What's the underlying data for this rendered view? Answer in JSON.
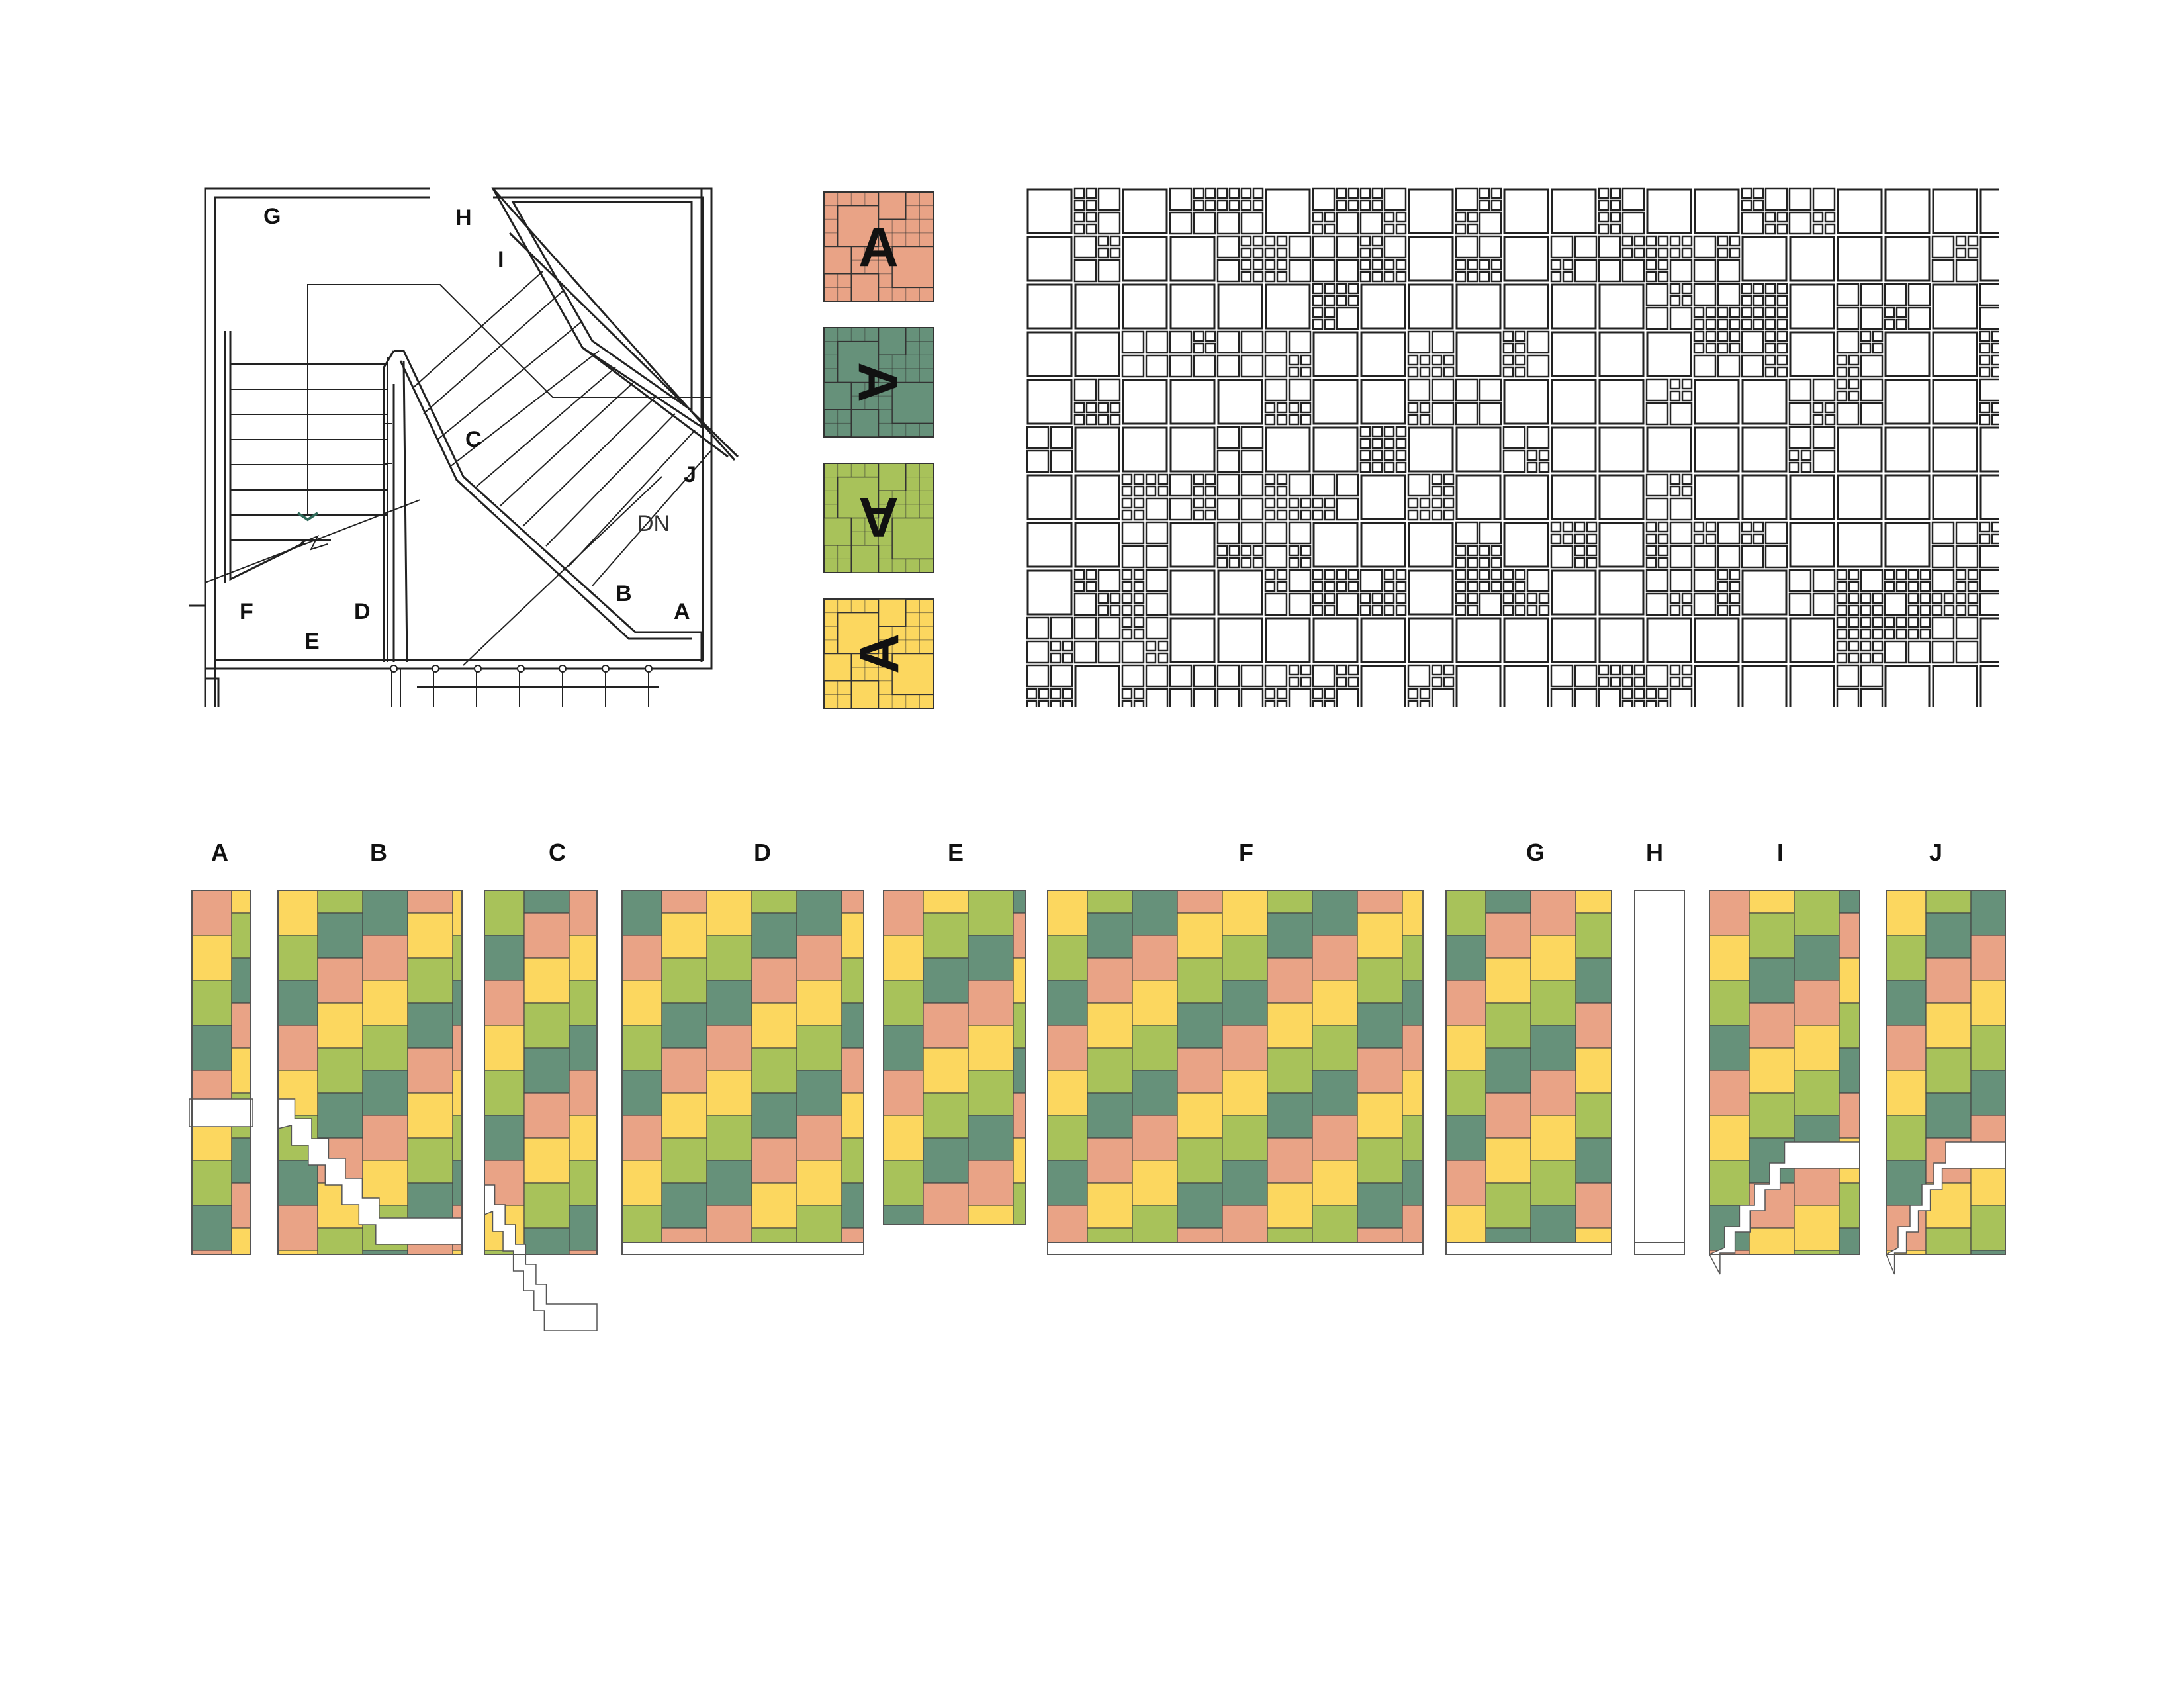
{
  "plan": {
    "labels": [
      "G",
      "H",
      "I",
      "C",
      "J",
      "B",
      "A",
      "F",
      "D",
      "E"
    ],
    "direction_note": "DN"
  },
  "swatches": [
    {
      "letter": "A",
      "color": "#E9A386",
      "rotation": 0
    },
    {
      "letter": "A",
      "color": "#66917A",
      "rotation": 90
    },
    {
      "letter": "A",
      "color": "#A8C25A",
      "rotation": 180
    },
    {
      "letter": "A",
      "color": "#FCD75F",
      "rotation": 270
    }
  ],
  "elevations": [
    {
      "label": "A",
      "stair": "band"
    },
    {
      "label": "B",
      "stair": "down-right"
    },
    {
      "label": "C",
      "stair": "down-right"
    },
    {
      "label": "D",
      "stair": "none"
    },
    {
      "label": "E",
      "stair": "none"
    },
    {
      "label": "F",
      "stair": "none"
    },
    {
      "label": "G",
      "stair": "none"
    },
    {
      "label": "H",
      "stair": "blank"
    },
    {
      "label": "I",
      "stair": "up-right"
    },
    {
      "label": "J",
      "stair": "up-right"
    }
  ],
  "colors": {
    "salmon": "#E9A386",
    "green": "#66917A",
    "lime": "#A8C25A",
    "yellow": "#FCD75F",
    "line": "#222222"
  }
}
